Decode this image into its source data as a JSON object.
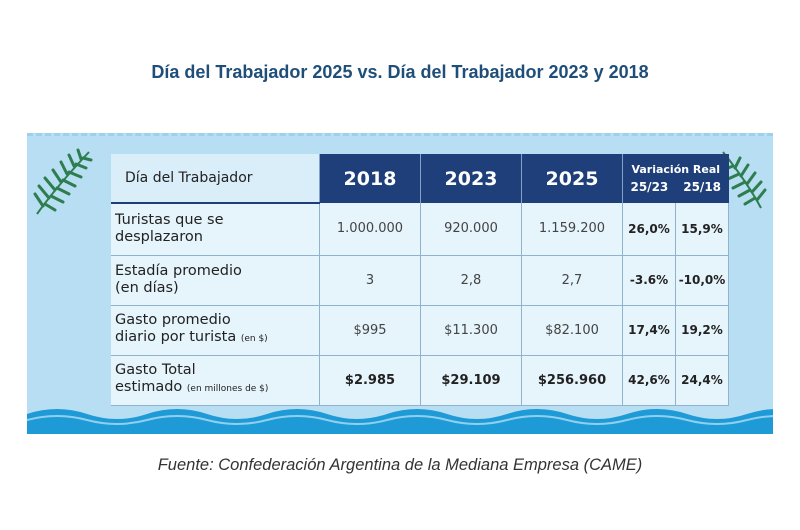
{
  "title": "Día del Trabajador 2025 vs. Día del Trabajador 2023 y 2018",
  "table": {
    "header_label": "Día del Trabajador",
    "years": [
      "2018",
      "2023",
      "2025"
    ],
    "variation_title": "Variación Real",
    "variation_cols": [
      "25/23",
      "25/18"
    ],
    "rows": [
      {
        "label_line1": "Turistas que se",
        "label_line2": "desplazaron",
        "label_note": "",
        "values": [
          "1.000.000",
          "920.000",
          "1.159.200"
        ],
        "variations": [
          "26,0%",
          "15,9%"
        ]
      },
      {
        "label_line1": "Estadía promedio",
        "label_line2": "(en días)",
        "label_note": "",
        "values": [
          "3",
          "2,8",
          "2,7"
        ],
        "variations": [
          "-3.6%",
          "-10,0%"
        ]
      },
      {
        "label_line1": "Gasto promedio",
        "label_line2": "diario por turista",
        "label_note": "(en $)",
        "values": [
          "$995",
          "$11.300",
          "$82.100"
        ],
        "variations": [
          "17,4%",
          "19,2%"
        ]
      },
      {
        "label_line1": "Gasto Total",
        "label_line2": "estimado",
        "label_note": "(en millones de $)",
        "values": [
          "$2.985",
          "$29.109",
          "$256.960"
        ],
        "variations": [
          "42,6%",
          "24,4%"
        ]
      }
    ]
  },
  "source": "Fuente: Confederación Argentina de la Mediana Empresa (CAME)",
  "colors": {
    "title": "#1f4e79",
    "header_bg": "#1f3f7a",
    "panel_bg": "#b7def3",
    "wave": "#1e9ad6",
    "leaf": "#2e7d4f"
  },
  "icons": [
    "palm-leaf-icon",
    "wave-decoration"
  ]
}
